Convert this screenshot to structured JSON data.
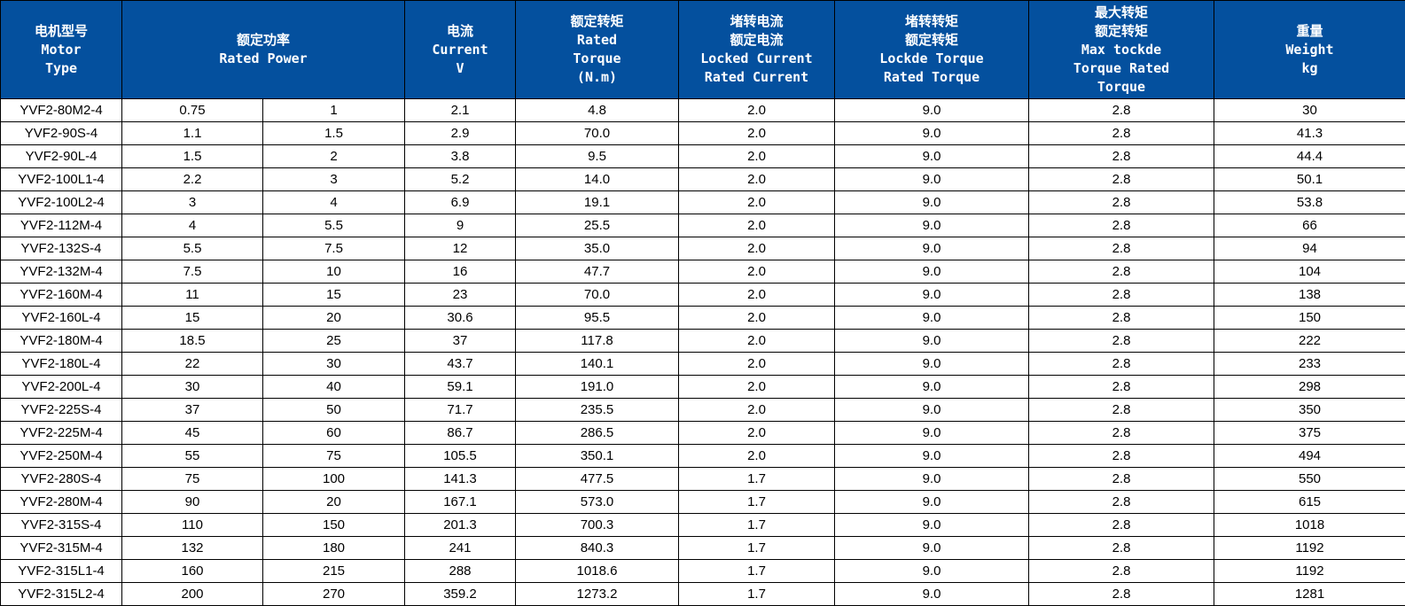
{
  "colors": {
    "header_bg": "#04509e",
    "header_text": "#ffffff",
    "border": "#000000",
    "row_bg": "#ffffff",
    "cell_text": "#000000"
  },
  "table": {
    "header": {
      "motor_type": "电机型号\nMotor\nType",
      "rated_power": "额定功率\nRated Power",
      "current": "电流\nCurrent\nV",
      "rated_torque": "额定转矩\nRated\nTorque\n(N.m)",
      "locked_current": "堵转电流\n额定电流\nLocked Current\nRated Current",
      "locked_torque": "堵转转矩\n额定转矩\nLockde Torque\nRated Torque",
      "max_torque": "最大转矩\n额定转矩\nMax tockde\nTorque Rated\nTorque",
      "weight": "重量\nWeight\nkg"
    },
    "column_ids": [
      "motor-type",
      "rated-power-kw",
      "rated-power-hp",
      "current",
      "rated-torque",
      "locked-current-ratio",
      "locked-torque-ratio",
      "max-torque-ratio",
      "weight"
    ],
    "rows": [
      [
        "YVF2-80M2-4",
        "0.75",
        "1",
        "2.1",
        "4.8",
        "2.0",
        "9.0",
        "2.8",
        "30"
      ],
      [
        "YVF2-90S-4",
        "1.1",
        "1.5",
        "2.9",
        "70.0",
        "2.0",
        "9.0",
        "2.8",
        "41.3"
      ],
      [
        "YVF2-90L-4",
        "1.5",
        "2",
        "3.8",
        "9.5",
        "2.0",
        "9.0",
        "2.8",
        "44.4"
      ],
      [
        "YVF2-100L1-4",
        "2.2",
        "3",
        "5.2",
        "14.0",
        "2.0",
        "9.0",
        "2.8",
        "50.1"
      ],
      [
        "YVF2-100L2-4",
        "3",
        "4",
        "6.9",
        "19.1",
        "2.0",
        "9.0",
        "2.8",
        "53.8"
      ],
      [
        "YVF2-112M-4",
        "4",
        "5.5",
        "9",
        "25.5",
        "2.0",
        "9.0",
        "2.8",
        "66"
      ],
      [
        "YVF2-132S-4",
        "5.5",
        "7.5",
        "12",
        "35.0",
        "2.0",
        "9.0",
        "2.8",
        "94"
      ],
      [
        "YVF2-132M-4",
        "7.5",
        "10",
        "16",
        "47.7",
        "2.0",
        "9.0",
        "2.8",
        "104"
      ],
      [
        "YVF2-160M-4",
        "11",
        "15",
        "23",
        "70.0",
        "2.0",
        "9.0",
        "2.8",
        "138"
      ],
      [
        "YVF2-160L-4",
        "15",
        "20",
        "30.6",
        "95.5",
        "2.0",
        "9.0",
        "2.8",
        "150"
      ],
      [
        "YVF2-180M-4",
        "18.5",
        "25",
        "37",
        "117.8",
        "2.0",
        "9.0",
        "2.8",
        "222"
      ],
      [
        "YVF2-180L-4",
        "22",
        "30",
        "43.7",
        "140.1",
        "2.0",
        "9.0",
        "2.8",
        "233"
      ],
      [
        "YVF2-200L-4",
        "30",
        "40",
        "59.1",
        "191.0",
        "2.0",
        "9.0",
        "2.8",
        "298"
      ],
      [
        "YVF2-225S-4",
        "37",
        "50",
        "71.7",
        "235.5",
        "2.0",
        "9.0",
        "2.8",
        "350"
      ],
      [
        "YVF2-225M-4",
        "45",
        "60",
        "86.7",
        "286.5",
        "2.0",
        "9.0",
        "2.8",
        "375"
      ],
      [
        "YVF2-250M-4",
        "55",
        "75",
        "105.5",
        "350.1",
        "2.0",
        "9.0",
        "2.8",
        "494"
      ],
      [
        "YVF2-280S-4",
        "75",
        "100",
        "141.3",
        "477.5",
        "1.7",
        "9.0",
        "2.8",
        "550"
      ],
      [
        "YVF2-280M-4",
        "90",
        "20",
        "167.1",
        "573.0",
        "1.7",
        "9.0",
        "2.8",
        "615"
      ],
      [
        "YVF2-315S-4",
        "110",
        "150",
        "201.3",
        "700.3",
        "1.7",
        "9.0",
        "2.8",
        "1018"
      ],
      [
        "YVF2-315M-4",
        "132",
        "180",
        "241",
        "840.3",
        "1.7",
        "9.0",
        "2.8",
        "1192"
      ],
      [
        "YVF2-315L1-4",
        "160",
        "215",
        "288",
        "1018.6",
        "1.7",
        "9.0",
        "2.8",
        "1192"
      ],
      [
        "YVF2-315L2-4",
        "200",
        "270",
        "359.2",
        "1273.2",
        "1.7",
        "9.0",
        "2.8",
        "1281"
      ]
    ]
  }
}
